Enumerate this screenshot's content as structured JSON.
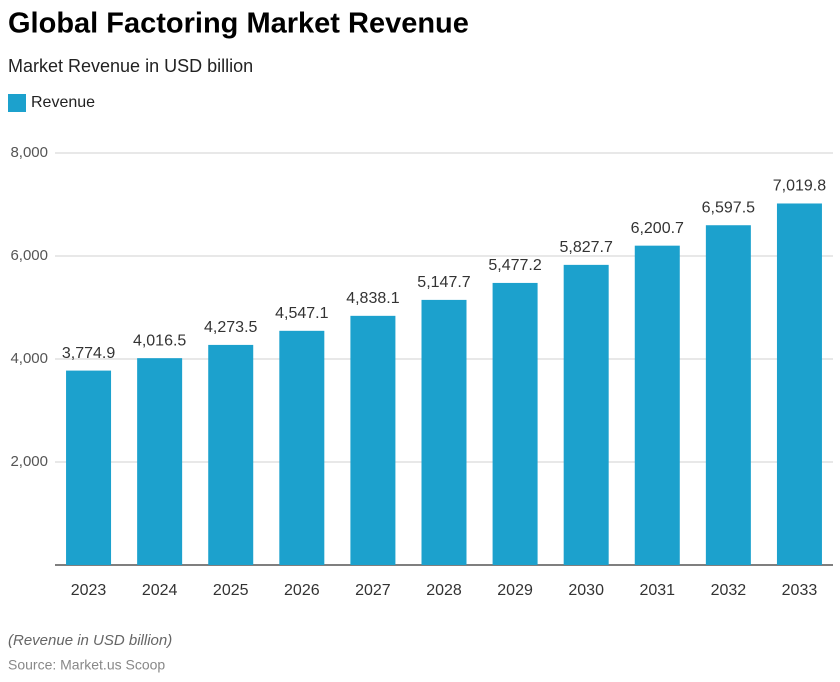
{
  "chart_data": {
    "type": "bar",
    "title": "Global Factoring Market Revenue",
    "subtitle": "Market Revenue in USD billion",
    "categories": [
      "2023",
      "2024",
      "2025",
      "2026",
      "2027",
      "2028",
      "2029",
      "2030",
      "2031",
      "2032",
      "2033"
    ],
    "series": [
      {
        "name": "Revenue",
        "color": "#1ca1cd",
        "values": [
          3774.9,
          4016.5,
          4273.5,
          4547.1,
          4838.1,
          5147.7,
          5477.2,
          5827.7,
          6200.7,
          6597.5,
          7019.8
        ],
        "value_labels": [
          "3,774.9",
          "4,016.5",
          "4,273.5",
          "4,547.1",
          "4,838.1",
          "5,147.7",
          "5,477.2",
          "5,827.7",
          "6,200.7",
          "6,597.5",
          "7,019.8"
        ]
      }
    ],
    "ylim": [
      0,
      8000
    ],
    "yticks": [
      {
        "value": 2000,
        "label": "2,000"
      },
      {
        "value": 4000,
        "label": "4,000"
      },
      {
        "value": 6000,
        "label": "6,000"
      },
      {
        "value": 8000,
        "label": "8,000"
      }
    ],
    "grid": true,
    "legend": "top-left",
    "footnote": "(Revenue in USD billion)",
    "source": "Source: Market.us Scoop"
  }
}
